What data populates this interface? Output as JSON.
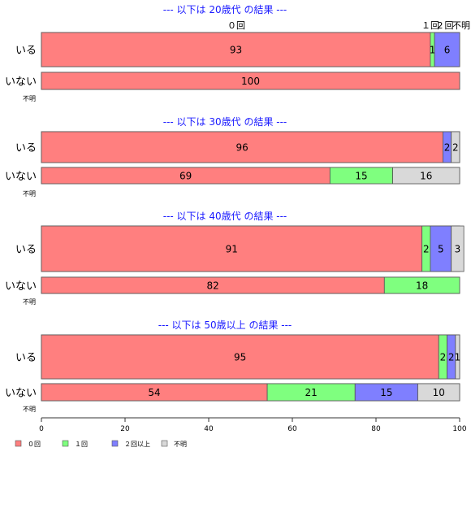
{
  "chart_data": {
    "type": "bar",
    "orientation": "horizontal",
    "stacked": true,
    "xlim": [
      0,
      100
    ],
    "xticks": [
      "0",
      "20",
      "40",
      "60",
      "80",
      "100"
    ],
    "legend": {
      "placement": "bottom-left",
      "items": [
        {
          "name": "０回",
          "color": "#ff7f7f"
        },
        {
          "name": "１回",
          "color": "#7fff7f"
        },
        {
          "name": "２回以上",
          "color": "#7f7fff"
        },
        {
          "name": "不明",
          "color": "#d9d9d9"
        }
      ]
    },
    "top_labels": [
      "０回",
      "１回",
      "2",
      "回",
      "不明"
    ],
    "groups": [
      {
        "title": "--- 以下は 20歳代 の結果 ---",
        "rows": [
          {
            "label": "いる",
            "values": [
              93,
              1,
              6,
              0
            ],
            "labels": [
              "93",
              "1",
              "6",
              ""
            ]
          },
          {
            "label": "いない",
            "values": [
              100,
              0,
              0,
              0
            ],
            "labels": [
              "100",
              "",
              "",
              ""
            ]
          }
        ],
        "fumei": "不明"
      },
      {
        "title": "--- 以下は 30歳代 の結果 ---",
        "rows": [
          {
            "label": "いる",
            "values": [
              96,
              0,
              2,
              2
            ],
            "labels": [
              "96",
              "",
              "2",
              "2"
            ]
          },
          {
            "label": "いない",
            "values": [
              69,
              15,
              0,
              16
            ],
            "labels": [
              "69",
              "15",
              "",
              "16"
            ]
          }
        ],
        "fumei": "不明"
      },
      {
        "title": "--- 以下は 40歳代 の結果 ---",
        "rows": [
          {
            "label": "いる",
            "values": [
              91,
              2,
              5,
              3
            ],
            "labels": [
              "91",
              "2",
              "5",
              "3"
            ]
          },
          {
            "label": "いない",
            "values": [
              82,
              18,
              0,
              0
            ],
            "labels": [
              "82",
              "18",
              "",
              ""
            ]
          }
        ],
        "fumei": "不明"
      },
      {
        "title": "--- 以下は 50歳以上 の結果 ---",
        "rows": [
          {
            "label": "いる",
            "values": [
              95,
              2,
              2,
              1
            ],
            "labels": [
              "95",
              "2",
              "2",
              "1"
            ]
          },
          {
            "label": "いない",
            "values": [
              54,
              21,
              15,
              10
            ],
            "labels": [
              "54",
              "21",
              "15",
              "10"
            ]
          }
        ],
        "fumei": "不明"
      }
    ]
  }
}
